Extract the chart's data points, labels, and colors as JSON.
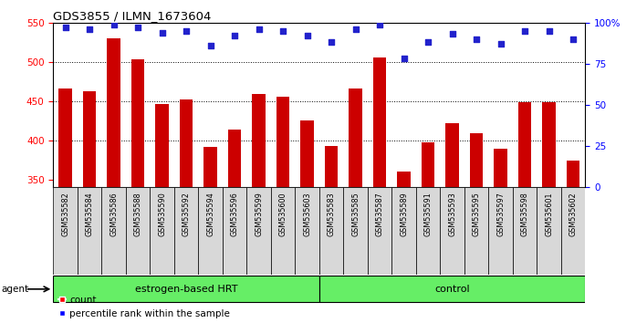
{
  "title": "GDS3855 / ILMN_1673604",
  "samples": [
    "GSM535582",
    "GSM535584",
    "GSM535586",
    "GSM535588",
    "GSM535590",
    "GSM535592",
    "GSM535594",
    "GSM535596",
    "GSM535599",
    "GSM535600",
    "GSM535603",
    "GSM535583",
    "GSM535585",
    "GSM535587",
    "GSM535589",
    "GSM535591",
    "GSM535593",
    "GSM535595",
    "GSM535597",
    "GSM535598",
    "GSM535601",
    "GSM535602"
  ],
  "counts": [
    466,
    463,
    530,
    503,
    446,
    452,
    391,
    414,
    459,
    455,
    425,
    393,
    466,
    505,
    360,
    397,
    422,
    409,
    389,
    449,
    449,
    374
  ],
  "percentile_values": [
    97,
    96,
    99,
    97,
    94,
    95,
    86,
    92,
    96,
    95,
    92,
    88,
    96,
    99,
    78,
    88,
    93,
    90,
    87,
    95,
    95,
    90
  ],
  "groups": [
    "estrogen-based HRT",
    "estrogen-based HRT",
    "estrogen-based HRT",
    "estrogen-based HRT",
    "estrogen-based HRT",
    "estrogen-based HRT",
    "estrogen-based HRT",
    "estrogen-based HRT",
    "estrogen-based HRT",
    "estrogen-based HRT",
    "estrogen-based HRT",
    "control",
    "control",
    "control",
    "control",
    "control",
    "control",
    "control",
    "control",
    "control",
    "control",
    "control"
  ],
  "bar_color": "#CC0000",
  "dot_color": "#2222CC",
  "ylim_left": [
    340,
    550
  ],
  "ylim_right": [
    0,
    100
  ],
  "yticks_left": [
    350,
    400,
    450,
    500,
    550
  ],
  "yticks_right": [
    0,
    25,
    50,
    75,
    100
  ],
  "hgrid_values": [
    400,
    450,
    500
  ],
  "group_color": "#66EE66",
  "bar_bg_color": "#d8d8d8",
  "plot_bg_color": "#ffffff",
  "legend_count_label": "count",
  "legend_pct_label": "percentile rank within the sample",
  "agent_label": "agent",
  "group_label_hrt": "estrogen-based HRT",
  "group_label_ctrl": "control"
}
